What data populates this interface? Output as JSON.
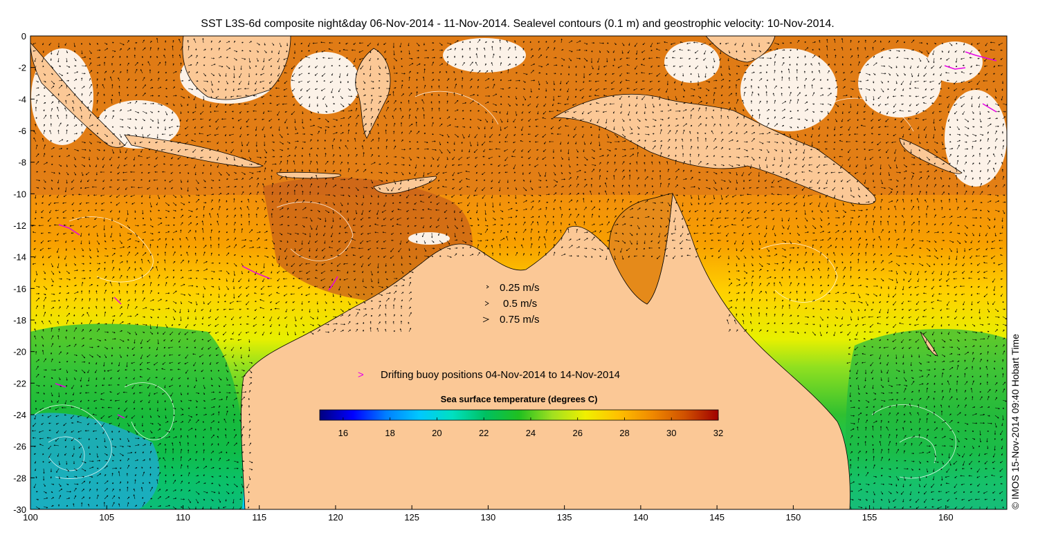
{
  "title": "SST L3S-6d composite night&day 06-Nov-2014 - 11-Nov-2014. Sealevel contours (0.1 m) and geostrophic velocity: 10-Nov-2014.",
  "copyright": "© IMOS 15-Nov-2014 09:40 Hobart Time",
  "colors": {
    "land": "#fbc896",
    "ocean_default": "#f08a1a",
    "buoy": "#e600e6",
    "contour": "#ffffff",
    "vector": "#000000"
  },
  "map": {
    "lon_range": [
      100,
      164
    ],
    "lat_range": [
      -30,
      0
    ],
    "lon_ticks": [
      100,
      105,
      110,
      115,
      120,
      125,
      130,
      135,
      140,
      145,
      150,
      155,
      160
    ],
    "lat_ticks": [
      0,
      -2,
      -4,
      -6,
      -8,
      -10,
      -12,
      -14,
      -16,
      -18,
      -20,
      -22,
      -24,
      -26,
      -28,
      -30
    ],
    "lon_tick_labels": [
      "100",
      "105",
      "110",
      "115",
      "120",
      "125",
      "130",
      "135",
      "140",
      "145",
      "150",
      "155",
      "160"
    ],
    "lat_tick_labels": [
      "0",
      "-2",
      "-4",
      "-6",
      "-8",
      "-10",
      "-12",
      "-14",
      "-16",
      "-18",
      "-20",
      "-22",
      "-24",
      "-26",
      "-28",
      "-30"
    ]
  },
  "velocity_legend": {
    "items": [
      {
        "label": "0.25 m/s",
        "speed": 0.25
      },
      {
        "label": "0.5 m/s",
        "speed": 0.5
      },
      {
        "label": "0.75 m/s",
        "speed": 0.75
      }
    ]
  },
  "buoy_legend": {
    "label": "Drifting buoy positions 04-Nov-2014 to 14-Nov-2014",
    "symbol": ">"
  },
  "colorbar": {
    "title": "Sea surface temperature (degrees C)",
    "min": 15,
    "max": 32,
    "ticks": [
      16,
      18,
      20,
      22,
      24,
      26,
      28,
      30,
      32
    ],
    "tick_labels": [
      "16",
      "18",
      "20",
      "22",
      "24",
      "26",
      "28",
      "30",
      "32"
    ],
    "colormap": [
      "#00007f",
      "#0000ff",
      "#007fff",
      "#00c8ff",
      "#00e0c0",
      "#00c060",
      "#20c020",
      "#a0e020",
      "#f0f000",
      "#ffc000",
      "#f08a00",
      "#d05000",
      "#a00000"
    ]
  }
}
